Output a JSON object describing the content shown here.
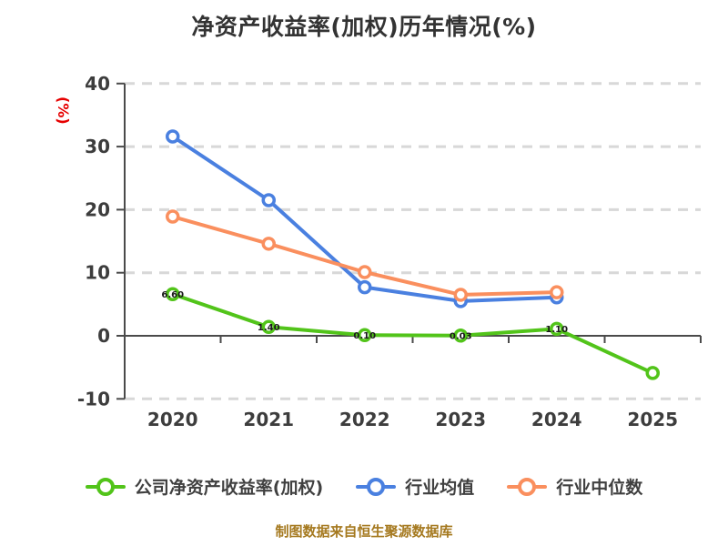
{
  "chart_data": {
    "type": "line",
    "title": "净资产收益率(加权)历年情况(%)",
    "ylabel": "(%)",
    "categories": [
      "2020",
      "2021",
      "2022",
      "2023",
      "2024",
      "2025"
    ],
    "y_ticks": [
      40,
      30,
      20,
      10,
      0,
      -10
    ],
    "ylim": [
      -10,
      40
    ],
    "grid": "horizontal-dashed",
    "legend_position": "bottom",
    "series": [
      {
        "name": "公司净资产收益率(加权)",
        "color": "#52c41a",
        "values": [
          6.6,
          1.4,
          0.1,
          0.03,
          1.1,
          -5.9
        ],
        "point_labels": [
          "6.60",
          "1.40",
          "0.10",
          "0.03",
          "1.10",
          null
        ]
      },
      {
        "name": "行业均值",
        "color": "#4a80e0",
        "values": [
          31.6,
          21.5,
          7.7,
          5.5,
          6.1,
          null
        ],
        "point_labels": [
          null,
          null,
          null,
          null,
          null,
          null
        ]
      },
      {
        "name": "行业中位数",
        "color": "#fa8f5e",
        "values": [
          18.9,
          14.6,
          10.1,
          6.5,
          6.9,
          null
        ],
        "point_labels": [
          null,
          null,
          null,
          null,
          null,
          null
        ]
      }
    ]
  },
  "footer": {
    "note": "制图数据来自恒生聚源数据库"
  },
  "colors": {
    "title": "#333333",
    "tick_label": "#3d3d3d",
    "axis": "#4a4a4a",
    "gridline": "#d8d8d8",
    "ylabel": "#e60000",
    "legend_text": "#404040",
    "footer": "#a5791f",
    "marker_fill": "#ffffff",
    "point_label": "#1a1a1a"
  }
}
